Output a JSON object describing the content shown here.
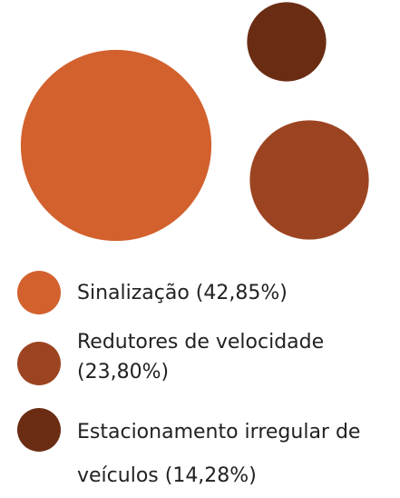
{
  "chart_data": {
    "type": "packed_bubble",
    "categories": [
      "Sinalização (42,85%)",
      "Redutores de velocidade (23,80%)",
      "Estacionamento irregular de veículos (14,28%)"
    ],
    "values": [
      42.85,
      23.8,
      14.28
    ],
    "colors": [
      "#d2612e",
      "#9c4421",
      "#6a2d14"
    ]
  }
}
